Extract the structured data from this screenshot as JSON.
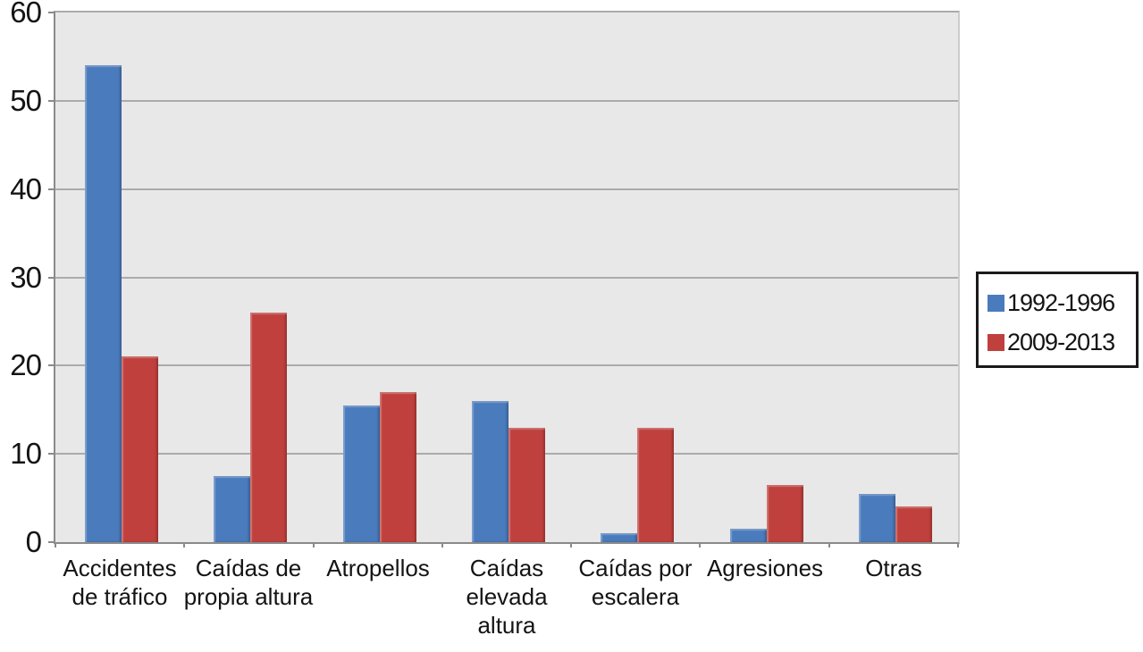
{
  "chart_data": {
    "type": "bar",
    "title": "",
    "xlabel": "",
    "ylabel": "",
    "categories": [
      "Accidentes de tráfico",
      "Caídas de propia altura",
      "Atropellos",
      "Caídas elevada altura",
      "Caídas por escalera",
      "Agresiones",
      "Otras"
    ],
    "categories_wrapped": [
      "Accidentes\nde tráfico",
      "Caídas de\npropia altura",
      "Atropellos",
      "Caídas\nelevada\naltura",
      "Caídas por\nescalera",
      "Agresiones",
      "Otras"
    ],
    "series": [
      {
        "name": "1992-1996",
        "color": "#4a7bbd",
        "values": [
          54,
          7.5,
          15.5,
          16,
          1,
          1.5,
          5.5
        ]
      },
      {
        "name": "2009-2013",
        "color": "#c0403d",
        "values": [
          21,
          26,
          17,
          13,
          13,
          6.5,
          4
        ]
      }
    ],
    "ylim": [
      0,
      60
    ],
    "yticks": [
      0,
      10,
      20,
      30,
      40,
      50,
      60
    ],
    "grid": true,
    "legend_position": "right",
    "plot_bg_color": "#e8e8e8",
    "gridline_color": "#ababab",
    "axis_color": "#8a8a8a",
    "text_color": "#141414"
  }
}
